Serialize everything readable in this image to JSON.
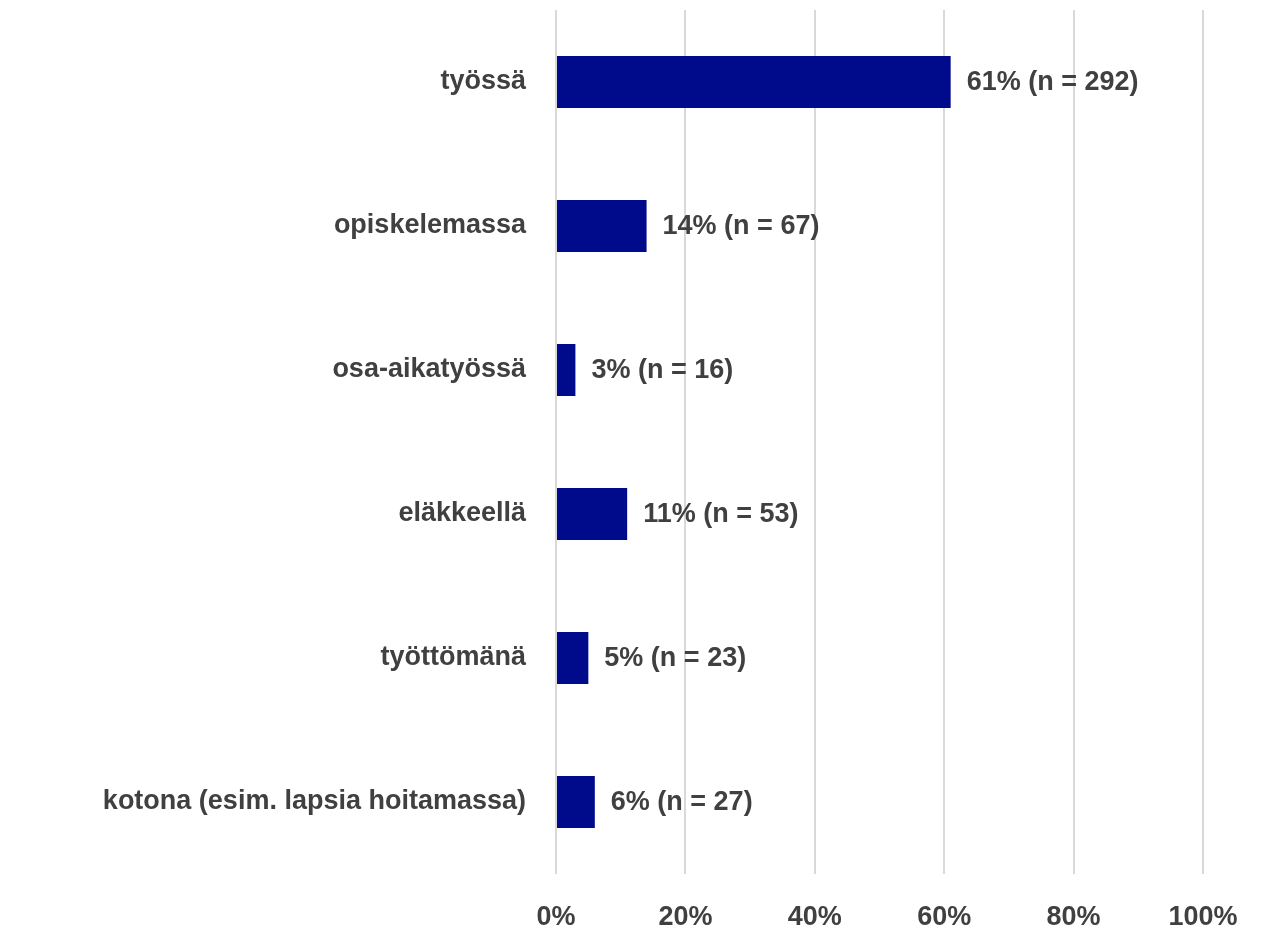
{
  "chart_data": {
    "type": "bar",
    "orientation": "horizontal",
    "categories": [
      "työssä",
      "opiskelemassa",
      "osa-aikatyössä",
      "eläkkeellä",
      "työttömänä",
      "kotona (esim. lapsia hoitamassa)"
    ],
    "values": [
      61,
      14,
      3,
      11,
      5,
      6
    ],
    "color": "#000b8c",
    "value_labels": [
      "61% (n = 292)",
      "14% (n = 67)",
      "3% (n = 16)",
      "11% (n = 53)",
      "5% (n = 23)",
      "6% (n = 27)"
    ],
    "xlim": [
      0,
      100
    ],
    "xticks": [
      {
        "value": 0,
        "label": "0%"
      },
      {
        "value": 20,
        "label": "20%"
      },
      {
        "value": 40,
        "label": "40%"
      },
      {
        "value": 60,
        "label": "60%"
      },
      {
        "value": 80,
        "label": "80%"
      },
      {
        "value": 100,
        "label": "100%"
      }
    ],
    "grid": "x"
  }
}
